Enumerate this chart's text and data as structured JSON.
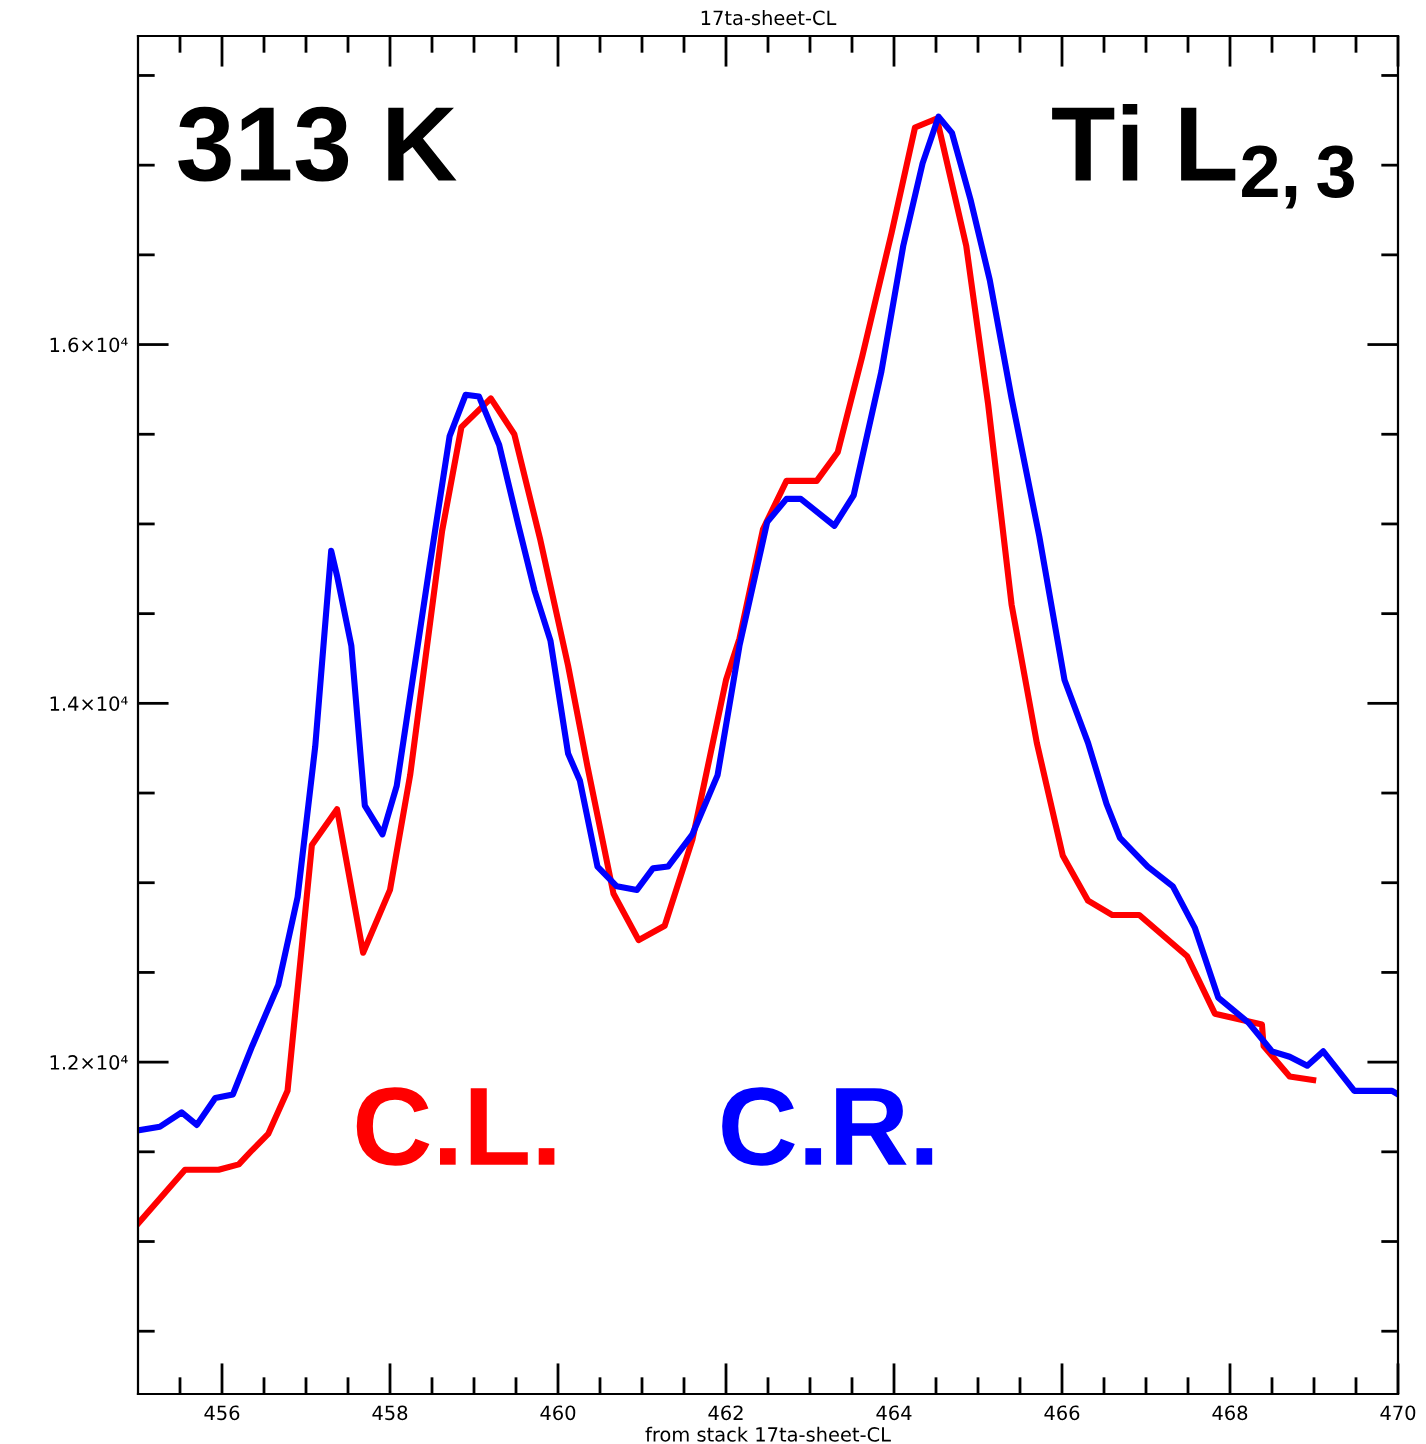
{
  "chart_data": {
    "type": "line",
    "title": "17ta-sheet-CL",
    "xlabel": "from stack 17ta-sheet-CL",
    "annotations": [
      "313 K",
      "Ti L$_{2,3}$"
    ],
    "xlim": [
      455,
      470
    ],
    "xticks": [
      {
        "value": 455.5,
        "label": null
      },
      456,
      {
        "value": 456.5,
        "label": null
      },
      {
        "value": 457,
        "label": null
      },
      {
        "value": 457.5,
        "label": null
      },
      458,
      {
        "value": 458.5,
        "label": null
      },
      {
        "value": 459,
        "label": null
      },
      {
        "value": 459.5,
        "label": null
      },
      460,
      {
        "value": 460.5,
        "label": null
      },
      {
        "value": 461,
        "label": null
      },
      {
        "value": 461.5,
        "label": null
      },
      462,
      {
        "value": 462.5,
        "label": null
      },
      {
        "value": 463,
        "label": null
      },
      {
        "value": 463.5,
        "label": null
      },
      464,
      {
        "value": 464.5,
        "label": null
      },
      {
        "value": 465,
        "label": null
      },
      {
        "value": 465.5,
        "label": null
      },
      466,
      {
        "value": 466.5,
        "label": null
      },
      {
        "value": 467,
        "label": null
      },
      {
        "value": 467.5,
        "label": null
      },
      468,
      {
        "value": 468.5,
        "label": null
      },
      {
        "value": 469,
        "label": null
      },
      {
        "value": 469.5,
        "label": null
      },
      470
    ],
    "ylim": [
      10150,
      17720
    ],
    "yticks": [
      {
        "value": 10500,
        "label": null
      },
      {
        "value": 11000,
        "label": null
      },
      {
        "value": 11500,
        "label": null
      },
      {
        "value": 12000,
        "label": "1.2×10⁴"
      },
      {
        "value": 12500,
        "label": null
      },
      {
        "value": 13000,
        "label": null
      },
      {
        "value": 13500,
        "label": null
      },
      {
        "value": 14000,
        "label": "1.4×10⁴"
      },
      {
        "value": 14500,
        "label": null
      },
      {
        "value": 15000,
        "label": null
      },
      {
        "value": 15500,
        "label": null
      },
      {
        "value": 16000,
        "label": "1.6×10⁴"
      },
      {
        "value": 16500,
        "label": null
      },
      {
        "value": 17000,
        "label": null
      },
      {
        "value": 17500,
        "label": null
      }
    ],
    "grid": false,
    "legend": false,
    "series": [
      {
        "name": "C.L.",
        "color": "#ff0000",
        "x": [
          455.0,
          455.56,
          455.96,
          456.2,
          456.36,
          456.55,
          456.78,
          457.07,
          457.37,
          457.68,
          458.0,
          458.24,
          458.62,
          458.85,
          459.2,
          459.48,
          459.79,
          460.12,
          460.35,
          460.66,
          460.96,
          461.27,
          461.6,
          462.0,
          462.16,
          462.44,
          462.72,
          463.08,
          463.33,
          463.62,
          463.97,
          464.25,
          464.51,
          464.86,
          465.12,
          465.4,
          465.7,
          466.01,
          466.31,
          466.6,
          466.92,
          467.49,
          467.82,
          468.38,
          468.4,
          468.71,
          468.99
        ],
        "values": [
          11100,
          11400,
          11400,
          11430,
          11510,
          11600,
          11840,
          13210,
          13410,
          12610,
          12960,
          13600,
          14960,
          15540,
          15700,
          15500,
          14910,
          14210,
          13650,
          12940,
          12680,
          12760,
          13240,
          14130,
          14360,
          14970,
          15240,
          15240,
          15400,
          15930,
          16620,
          17210,
          17260,
          16550,
          15670,
          14550,
          13780,
          13150,
          12900,
          12820,
          12820,
          12590,
          12270,
          12210,
          12090,
          11920,
          11900
        ]
      },
      {
        "name": "C.R.",
        "color": "#0000ff",
        "x": [
          455.0,
          455.26,
          455.52,
          455.7,
          455.92,
          456.13,
          456.36,
          456.67,
          456.9,
          457.11,
          457.3,
          457.37,
          457.54,
          457.7,
          457.91,
          458.08,
          458.47,
          458.71,
          458.9,
          459.06,
          459.3,
          459.53,
          459.72,
          459.91,
          460.12,
          460.26,
          460.47,
          460.7,
          460.94,
          461.13,
          461.31,
          461.6,
          461.9,
          462.16,
          462.49,
          462.72,
          462.89,
          463.29,
          463.52,
          463.85,
          464.11,
          464.34,
          464.53,
          464.69,
          464.91,
          465.14,
          465.4,
          465.73,
          466.03,
          466.31,
          466.53,
          466.69,
          467.02,
          467.32,
          467.58,
          467.86,
          468.22,
          468.5,
          468.71,
          468.92,
          469.11,
          469.48,
          469.93,
          470.0
        ],
        "values": [
          11620,
          11640,
          11720,
          11650,
          11800,
          11820,
          12090,
          12430,
          12920,
          13760,
          14850,
          14710,
          14320,
          13430,
          13270,
          13540,
          14760,
          15490,
          15720,
          15710,
          15440,
          14990,
          14630,
          14350,
          13720,
          13570,
          13090,
          12980,
          12960,
          13080,
          13090,
          13270,
          13600,
          14320,
          15010,
          15140,
          15140,
          14990,
          15160,
          15850,
          16550,
          17010,
          17270,
          17180,
          16810,
          16360,
          15700,
          14930,
          14130,
          13780,
          13440,
          13250,
          13090,
          12980,
          12750,
          12360,
          12220,
          12060,
          12030,
          11980,
          12060,
          11840,
          11840,
          11820
        ]
      }
    ]
  }
}
